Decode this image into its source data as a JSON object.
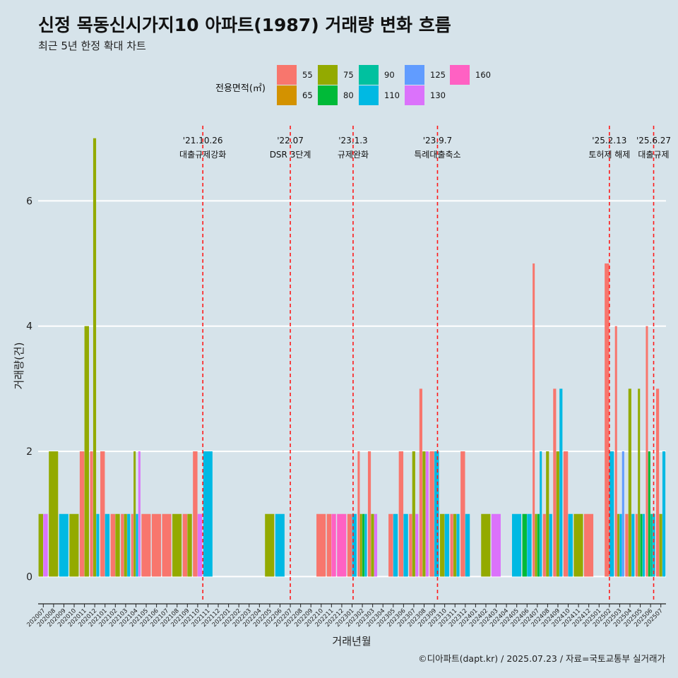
{
  "title": "신정 목동신시가지10 아파트(1987) 거래량 변화 흐름",
  "subtitle": "최근 5년 한정 확대 차트",
  "caption": "©디아파트(dapt.kr) / 2025.07.23 / 자료=국토교통부 실거래가",
  "legend": {
    "title": "전용면적(㎡)",
    "items": [
      {
        "label": "55",
        "color": "#F8766D"
      },
      {
        "label": "65",
        "color": "#D39200"
      },
      {
        "label": "75",
        "color": "#93AA00"
      },
      {
        "label": "80",
        "color": "#00BA38"
      },
      {
        "label": "90",
        "color": "#00C19F"
      },
      {
        "label": "110",
        "color": "#00B9E3"
      },
      {
        "label": "125",
        "color": "#619CFF"
      },
      {
        "label": "130",
        "color": "#DB72FB"
      },
      {
        "label": "160",
        "color": "#FF61C3"
      }
    ]
  },
  "chart_data": {
    "type": "bar",
    "xlabel": "거래년월",
    "ylabel": "거래량(건)",
    "ylim": [
      -0.3,
      7.2
    ],
    "yticks": [
      0,
      2,
      4,
      6
    ],
    "categories": [
      "202007",
      "202008",
      "202009",
      "202010",
      "202011",
      "202012",
      "202101",
      "202102",
      "202103",
      "202104",
      "202105",
      "202106",
      "202107",
      "202108",
      "202109",
      "202110",
      "202111",
      "202112",
      "202201",
      "202202",
      "202203",
      "202204",
      "202205",
      "202206",
      "202207",
      "202208",
      "202209",
      "202210",
      "202211",
      "202212",
      "202301",
      "202302",
      "202303",
      "202304",
      "202305",
      "202306",
      "202307",
      "202308",
      "202309",
      "202310",
      "202311",
      "202312",
      "202401",
      "202402",
      "202403",
      "202404",
      "202405",
      "202406",
      "202407",
      "202408",
      "202409",
      "202410",
      "202411",
      "202412",
      "202501",
      "202502",
      "202503",
      "202504",
      "202505",
      "202506",
      "202507"
    ],
    "series": [
      {
        "name": "55",
        "values": [
          0,
          0,
          0,
          0,
          2,
          2,
          2,
          1,
          1,
          1,
          1,
          1,
          1,
          0,
          1,
          2,
          0,
          0,
          0,
          0,
          0,
          0,
          0,
          0,
          0,
          0,
          0,
          1,
          1,
          0,
          1,
          2,
          2,
          0,
          1,
          2,
          1,
          3,
          2,
          0,
          1,
          2,
          0,
          0,
          0,
          0,
          0,
          0,
          5,
          1,
          3,
          2,
          0,
          1,
          0,
          5,
          4,
          1,
          1,
          4,
          3
        ]
      },
      {
        "name": "65",
        "values": [
          0,
          0,
          0,
          0,
          0,
          0,
          0,
          0,
          0,
          0,
          0,
          0,
          0,
          0,
          0,
          0,
          0,
          0,
          0,
          0,
          0,
          0,
          0,
          0,
          0,
          0,
          0,
          0,
          0,
          0,
          0,
          0,
          0,
          0,
          0,
          0,
          0,
          0,
          0,
          0,
          0,
          0,
          0,
          0,
          0,
          0,
          0,
          0,
          0,
          0,
          0,
          0,
          0,
          0,
          0,
          0,
          0,
          0,
          0,
          0,
          0
        ]
      },
      {
        "name": "75",
        "values": [
          1,
          2,
          0,
          1,
          4,
          7,
          0,
          1,
          1,
          2,
          0,
          0,
          0,
          1,
          1,
          0,
          0,
          0,
          0,
          0,
          0,
          0,
          1,
          0,
          0,
          0,
          0,
          0,
          0,
          0,
          0,
          1,
          1,
          0,
          0,
          0,
          2,
          2,
          0,
          1,
          1,
          0,
          0,
          1,
          0,
          0,
          0,
          0,
          1,
          2,
          2,
          0,
          1,
          0,
          0,
          0,
          1,
          3,
          3,
          0,
          1
        ]
      },
      {
        "name": "80",
        "values": [
          0,
          0,
          0,
          0,
          0,
          0,
          0,
          0,
          0,
          0,
          0,
          0,
          0,
          0,
          0,
          0,
          0,
          0,
          0,
          0,
          0,
          0,
          0,
          0,
          0,
          0,
          0,
          0,
          0,
          0,
          0,
          1,
          0,
          0,
          0,
          0,
          0,
          0,
          0,
          0,
          0,
          0,
          0,
          0,
          0,
          0,
          0,
          1,
          1,
          0,
          0,
          0,
          0,
          0,
          0,
          0,
          0,
          0,
          1,
          2,
          0
        ]
      },
      {
        "name": "90",
        "values": [
          0,
          0,
          0,
          0,
          0,
          0,
          0,
          0,
          0,
          0,
          0,
          0,
          0,
          0,
          0,
          0,
          0,
          0,
          0,
          0,
          0,
          0,
          0,
          0,
          0,
          0,
          0,
          0,
          0,
          0,
          0,
          0,
          0,
          0,
          0,
          0,
          0,
          0,
          0,
          0,
          0,
          0,
          0,
          0,
          0,
          0,
          0,
          0,
          0,
          0,
          0,
          0,
          0,
          0,
          0,
          0,
          0,
          0,
          0,
          1,
          0
        ]
      },
      {
        "name": "110",
        "values": [
          0,
          0,
          1,
          0,
          0,
          1,
          1,
          0,
          1,
          1,
          0,
          0,
          0,
          0,
          0,
          0,
          2,
          0,
          0,
          0,
          0,
          0,
          0,
          1,
          0,
          0,
          0,
          0,
          0,
          0,
          1,
          1,
          0,
          0,
          1,
          1,
          0,
          0,
          2,
          1,
          1,
          1,
          0,
          0,
          0,
          0,
          1,
          1,
          2,
          1,
          3,
          1,
          0,
          0,
          0,
          2,
          1,
          1,
          1,
          1,
          2
        ]
      },
      {
        "name": "125",
        "values": [
          0,
          0,
          0,
          0,
          0,
          0,
          0,
          0,
          0,
          0,
          0,
          0,
          0,
          0,
          0,
          0,
          0,
          0,
          0,
          0,
          0,
          0,
          0,
          0,
          0,
          0,
          0,
          0,
          0,
          0,
          0,
          0,
          0,
          0,
          0,
          0,
          0,
          0,
          0,
          0,
          0,
          0,
          0,
          0,
          0,
          0,
          0,
          0,
          0,
          0,
          0,
          0,
          0,
          0,
          0,
          0,
          2,
          0,
          0,
          0,
          0
        ]
      },
      {
        "name": "130",
        "values": [
          1,
          0,
          0,
          0,
          0,
          0,
          0,
          0,
          0,
          2,
          0,
          0,
          0,
          0,
          0,
          1,
          0,
          0,
          0,
          0,
          0,
          0,
          0,
          0,
          0,
          0,
          0,
          0,
          0,
          0,
          0,
          0,
          1,
          0,
          0,
          0,
          1,
          2,
          0,
          0,
          0,
          0,
          0,
          0,
          1,
          0,
          0,
          0,
          0,
          0,
          0,
          0,
          0,
          0,
          0,
          0,
          0,
          0,
          0,
          0,
          0
        ]
      },
      {
        "name": "160",
        "values": [
          0,
          0,
          0,
          0,
          0,
          0,
          0,
          0,
          0,
          0,
          0,
          0,
          0,
          0,
          0,
          0,
          0,
          0,
          0,
          0,
          0,
          0,
          0,
          0,
          0,
          0,
          0,
          0,
          1,
          1,
          0,
          0,
          0,
          0,
          0,
          0,
          0,
          0,
          0,
          0,
          0,
          0,
          0,
          0,
          0,
          0,
          0,
          0,
          0,
          0,
          0,
          0,
          0,
          0,
          0,
          0,
          0,
          0,
          0,
          0,
          0
        ]
      }
    ],
    "events": [
      {
        "x": "202110",
        "offset": 0.5,
        "date": "'21.10.26",
        "label": "대출규제강화"
      },
      {
        "x": "202207",
        "offset": 0.0,
        "date": "'22.07",
        "label": "DSR 3단계"
      },
      {
        "x": "202301",
        "offset": 0.1,
        "date": "'23.1.3",
        "label": "규제완화"
      },
      {
        "x": "202309",
        "offset": 0.3,
        "date": "'23.9.7",
        "label": "특례대출축소"
      },
      {
        "x": "202502",
        "offset": 0.0,
        "date": "'25.2.13",
        "label": "토허제 해제"
      },
      {
        "x": "202506",
        "offset": 0.3,
        "date": "'25.6.27",
        "label": "대출규제"
      }
    ]
  }
}
